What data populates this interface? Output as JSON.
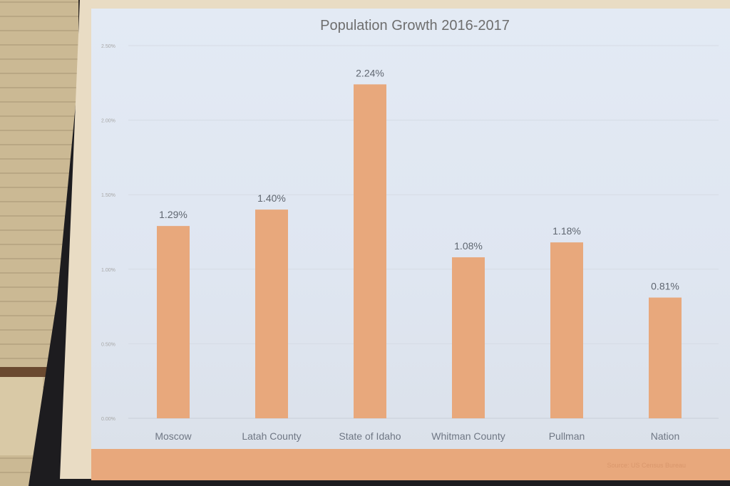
{
  "chart_data": {
    "type": "bar",
    "title": "Population Growth 2016-2017",
    "categories": [
      "Moscow",
      "Latah County",
      "State of Idaho",
      "Whitman County",
      "Pullman",
      "Nation"
    ],
    "values": [
      1.29,
      1.4,
      2.24,
      1.08,
      1.18,
      0.81
    ],
    "data_labels": [
      "1.29%",
      "1.40%",
      "2.24%",
      "1.08%",
      "1.18%",
      "0.81%"
    ],
    "ylim": [
      0,
      2.5
    ],
    "yticks": [
      0,
      0.5,
      1.0,
      1.5,
      2.0,
      2.5
    ],
    "ytick_labels": [
      "0.00%",
      "0.50%",
      "1.00%",
      "1.50%",
      "2.00%",
      "2.50%"
    ],
    "grid": true,
    "bar_color": "#e8a87c",
    "xlabel": "",
    "ylabel": ""
  },
  "footer": {
    "source": "Source: US Census Bureau"
  }
}
